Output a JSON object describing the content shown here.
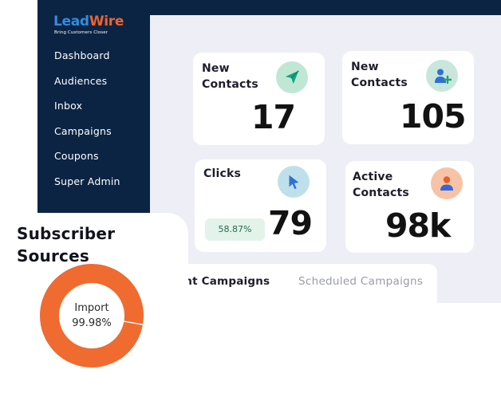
{
  "logo": {
    "part1": "Lead",
    "part2": "Wire",
    "tagline": "Bring Customers Closer"
  },
  "sidebar": {
    "items": [
      {
        "label": "Dashboard"
      },
      {
        "label": "Audiences"
      },
      {
        "label": "Inbox"
      },
      {
        "label": "Campaigns"
      },
      {
        "label": "Coupons"
      },
      {
        "label": "Super Admin"
      }
    ]
  },
  "stats": {
    "new_contacts_a": {
      "label": "New\nContacts",
      "value": "17",
      "icon": "paper-plane-icon"
    },
    "new_contacts_b": {
      "label": "New\nContacts",
      "value": "105",
      "icon": "add-user-icon"
    },
    "clicks": {
      "label": "Clicks",
      "value": "79",
      "badge": "58.87%",
      "icon": "cursor-icon"
    },
    "active_contacts": {
      "label": "Active\nContacts",
      "value": "98k",
      "icon": "user-icon"
    }
  },
  "campaign_tabs": {
    "sent": "Sent Campaigns",
    "scheduled": "Scheduled Campaigns"
  },
  "subscriber_sources": {
    "title": "Subscriber\nSources",
    "segment_label": "Import",
    "segment_percent": "99.98%",
    "segment_fraction": 0.9998
  },
  "colors": {
    "sidebar": "#0b2444",
    "brand_blue": "#2f8ee0",
    "brand_orange": "#f0632c",
    "donut": "#ef6b30",
    "badge_bg": "#e2f4ea"
  }
}
